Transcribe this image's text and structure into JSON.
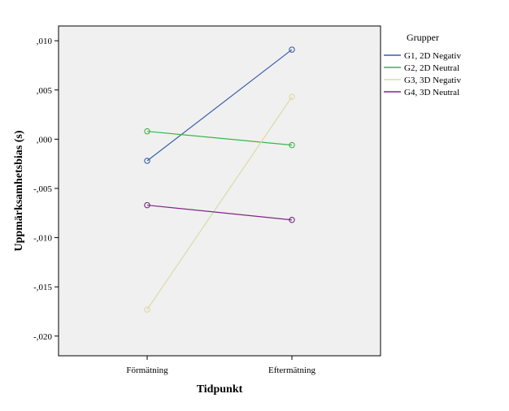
{
  "chart_data": {
    "type": "line",
    "title": "",
    "xlabel": "Tidpunkt",
    "ylabel": "Uppmärksamhetsbias (s)",
    "categories": [
      "Förmätning",
      "Eftermätning"
    ],
    "ylim": [
      -0.022,
      0.0115
    ],
    "yticks": [
      0.01,
      0.005,
      0.0,
      -0.005,
      -0.01,
      -0.015,
      -0.02
    ],
    "ytick_labels": [
      ",010",
      ",005",
      ",000",
      "-,005",
      "-,010",
      "-,015",
      "-,020"
    ],
    "grid": false,
    "legend_title": "Grupper",
    "legend_position": "right",
    "plot_background": "#f0f0f0",
    "series": [
      {
        "name": "G1, 2D Negativ",
        "values": [
          -0.0022,
          0.0091
        ],
        "color": "#3a5fac"
      },
      {
        "name": "G2, 2D Neutral",
        "values": [
          0.0008,
          -0.0006
        ],
        "color": "#3cb44b"
      },
      {
        "name": "G3, 3D Negativ",
        "values": [
          -0.0173,
          0.0043
        ],
        "color": "#dadba5"
      },
      {
        "name": "G4, 3D Neutral",
        "values": [
          -0.0067,
          -0.0082
        ],
        "color": "#7b2882"
      }
    ],
    "marker": "circle-open"
  }
}
